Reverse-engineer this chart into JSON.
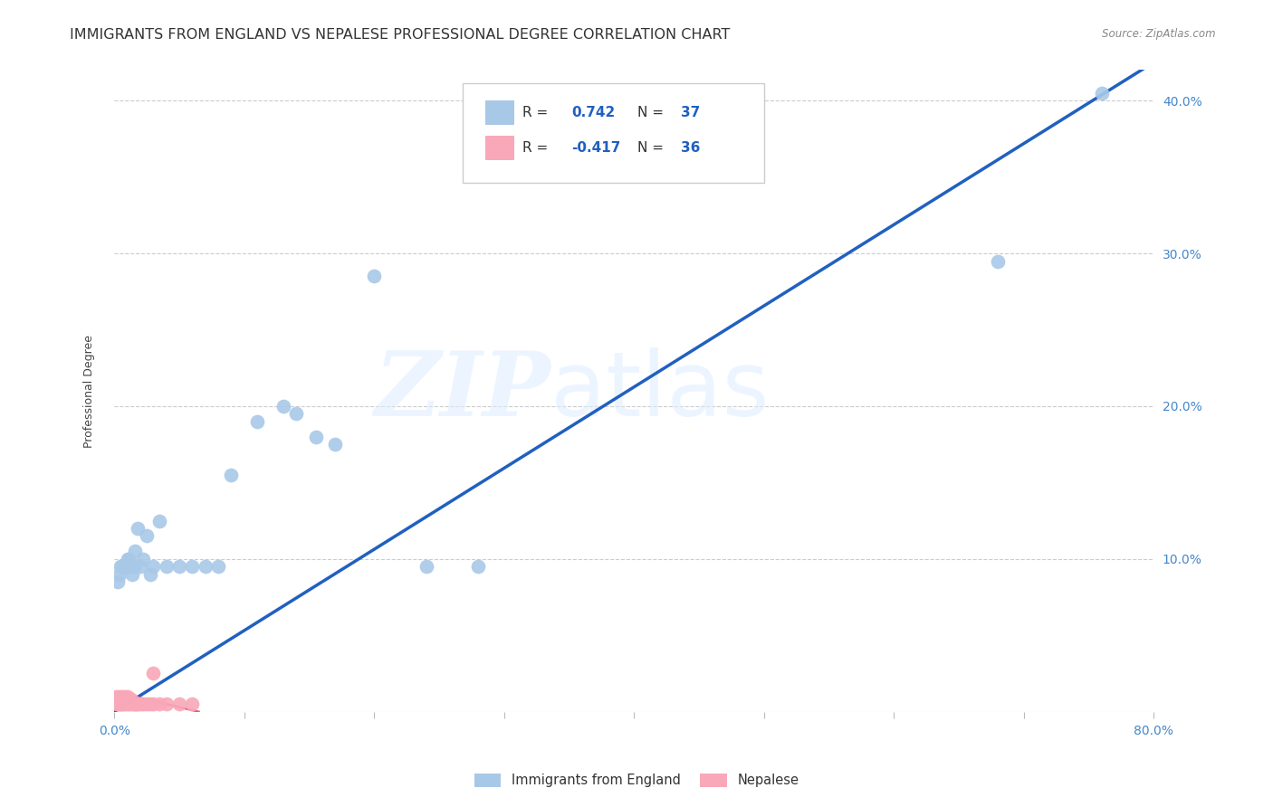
{
  "title": "IMMIGRANTS FROM ENGLAND VS NEPALESE PROFESSIONAL DEGREE CORRELATION CHART",
  "source": "Source: ZipAtlas.com",
  "ylabel": "Professional Degree",
  "xlim": [
    0.0,
    0.8
  ],
  "ylim": [
    0.0,
    0.42
  ],
  "xticks": [
    0.0,
    0.1,
    0.2,
    0.3,
    0.4,
    0.5,
    0.6,
    0.7,
    0.8
  ],
  "yticks": [
    0.0,
    0.1,
    0.2,
    0.3,
    0.4
  ],
  "xtick_labels": [
    "0.0%",
    "",
    "",
    "",
    "",
    "",
    "",
    "",
    "80.0%"
  ],
  "right_ytick_labels": [
    "",
    "10.0%",
    "20.0%",
    "30.0%",
    "40.0%"
  ],
  "blue_R": "0.742",
  "blue_N": "37",
  "pink_R": "-0.417",
  "pink_N": "36",
  "blue_color": "#a8c8e8",
  "blue_line_color": "#2060c0",
  "pink_color": "#f8a8b8",
  "pink_line_color": "#e06080",
  "watermark_zip": "ZIP",
  "watermark_atlas": "atlas",
  "legend_label_blue": "Immigrants from England",
  "legend_label_pink": "Nepalese",
  "blue_scatter_x": [
    0.003,
    0.004,
    0.005,
    0.006,
    0.007,
    0.008,
    0.009,
    0.01,
    0.011,
    0.012,
    0.013,
    0.014,
    0.015,
    0.016,
    0.018,
    0.02,
    0.022,
    0.025,
    0.028,
    0.03,
    0.035,
    0.04,
    0.05,
    0.06,
    0.07,
    0.08,
    0.09,
    0.11,
    0.13,
    0.14,
    0.155,
    0.17,
    0.2,
    0.24,
    0.28,
    0.68,
    0.76
  ],
  "blue_scatter_y": [
    0.085,
    0.09,
    0.095,
    0.095,
    0.095,
    0.095,
    0.095,
    0.1,
    0.1,
    0.095,
    0.095,
    0.09,
    0.095,
    0.105,
    0.12,
    0.095,
    0.1,
    0.115,
    0.09,
    0.095,
    0.125,
    0.095,
    0.095,
    0.095,
    0.095,
    0.095,
    0.155,
    0.19,
    0.2,
    0.195,
    0.18,
    0.175,
    0.285,
    0.095,
    0.095,
    0.295,
    0.405
  ],
  "pink_scatter_x": [
    0.001,
    0.002,
    0.002,
    0.003,
    0.003,
    0.004,
    0.004,
    0.005,
    0.005,
    0.006,
    0.006,
    0.007,
    0.007,
    0.008,
    0.008,
    0.009,
    0.01,
    0.01,
    0.011,
    0.012,
    0.013,
    0.014,
    0.015,
    0.016,
    0.017,
    0.018,
    0.02,
    0.022,
    0.025,
    0.028,
    0.03,
    0.035,
    0.04,
    0.05,
    0.06,
    0.03
  ],
  "pink_scatter_y": [
    0.008,
    0.005,
    0.01,
    0.005,
    0.008,
    0.005,
    0.01,
    0.005,
    0.008,
    0.005,
    0.01,
    0.005,
    0.008,
    0.005,
    0.01,
    0.008,
    0.005,
    0.01,
    0.008,
    0.005,
    0.008,
    0.005,
    0.005,
    0.005,
    0.005,
    0.005,
    0.005,
    0.005,
    0.005,
    0.005,
    0.005,
    0.005,
    0.005,
    0.005,
    0.005,
    0.025
  ],
  "blue_line_x": [
    0.0,
    0.8
  ],
  "blue_line_y": [
    0.0,
    0.425
  ],
  "pink_line_x": [
    0.0,
    0.065
  ],
  "pink_line_y": [
    0.013,
    0.0
  ],
  "background_color": "#ffffff",
  "title_fontsize": 11.5,
  "axis_label_fontsize": 9,
  "tick_fontsize": 10,
  "tick_color": "#4488cc",
  "grid_color": "#cccccc",
  "title_color": "#333333"
}
